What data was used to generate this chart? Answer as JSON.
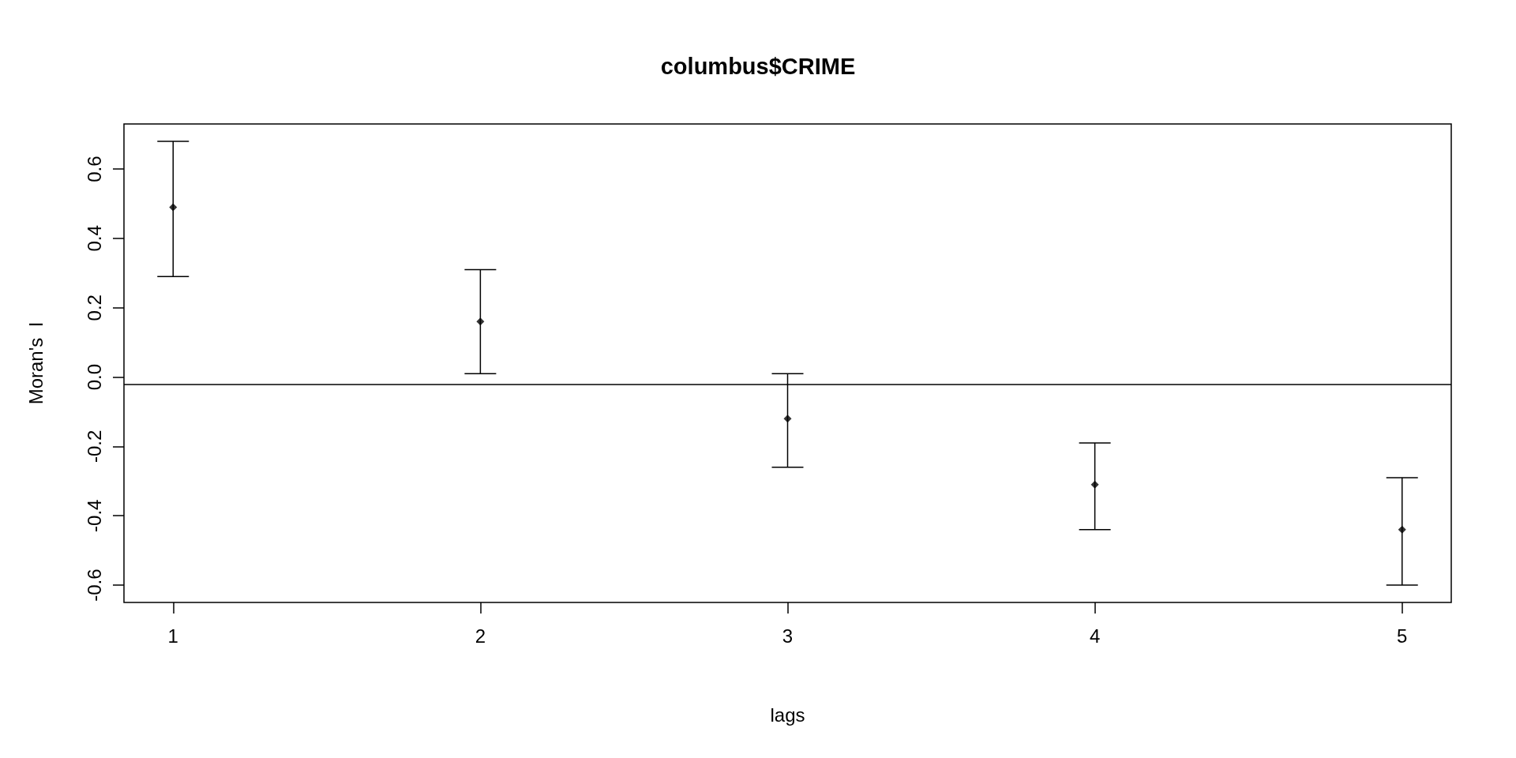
{
  "chart_data": {
    "type": "scatter",
    "title": "columbus$CRIME",
    "xlabel": "lags",
    "ylabel": "Moran's  I",
    "x": [
      1,
      2,
      3,
      4,
      5
    ],
    "values": [
      0.49,
      0.16,
      -0.12,
      -0.31,
      -0.44
    ],
    "errors": [
      [
        0.29,
        0.68
      ],
      [
        0.01,
        0.31
      ],
      [
        -0.26,
        0.01
      ],
      [
        -0.44,
        -0.19
      ],
      [
        -0.6,
        -0.29
      ]
    ],
    "color": "#000000",
    "marker": "diamond",
    "xlim": [
      0.84,
      5.16
    ],
    "xticks": [
      1,
      2,
      3,
      4,
      5
    ],
    "ylim": [
      -0.65,
      0.73
    ],
    "yticks": [
      -0.6,
      -0.4,
      -0.2,
      {
        "value": 0,
        "label": "0.0"
      },
      0.2,
      0.4,
      0.6
    ],
    "ref_lines": [
      {
        "axis": "y",
        "value": -0.02,
        "color": "#000000"
      }
    ],
    "grid": false
  }
}
